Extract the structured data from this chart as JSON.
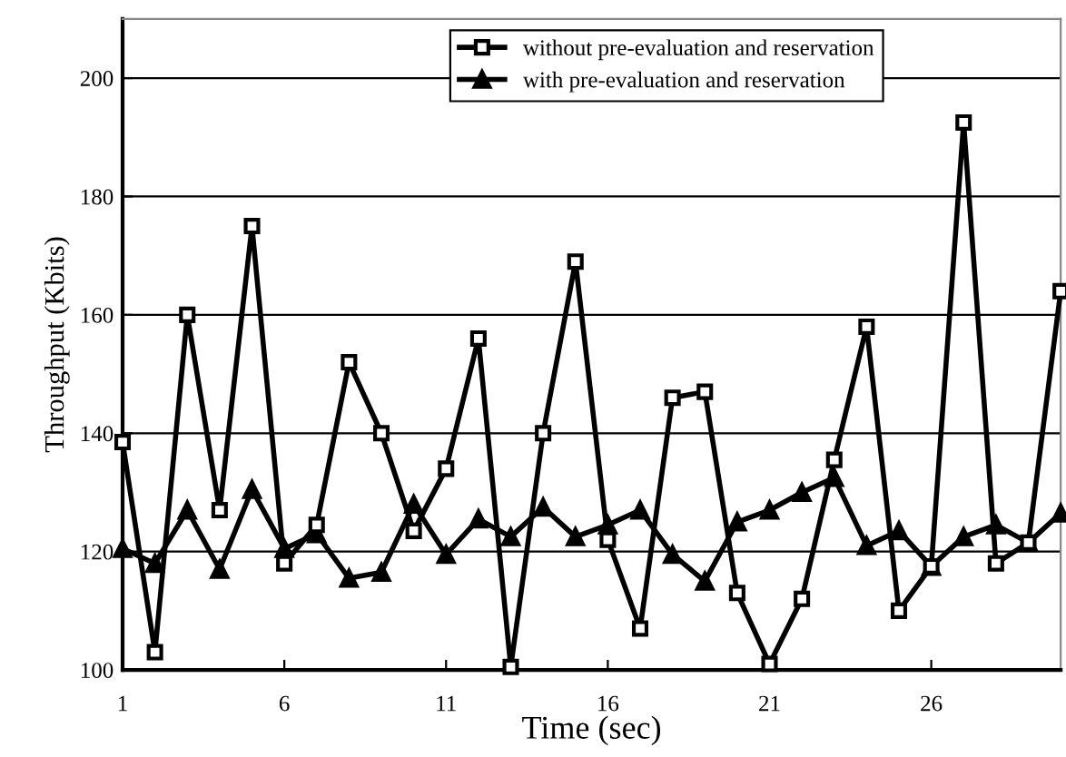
{
  "chart_data": {
    "type": "line",
    "xlabel": "Time (sec)",
    "ylabel": "Throughput (Kbits)",
    "x": [
      1,
      2,
      3,
      4,
      5,
      6,
      7,
      8,
      9,
      10,
      11,
      12,
      13,
      14,
      15,
      16,
      17,
      18,
      19,
      20,
      21,
      22,
      23,
      24,
      25,
      26,
      27,
      28,
      29,
      30
    ],
    "series": [
      {
        "name": "without pre-evaluation and reservation",
        "color": "#000000",
        "marker": "square",
        "values": [
          138.5,
          103,
          160,
          127,
          175,
          118,
          124.5,
          152,
          140,
          123.5,
          134,
          156,
          100.5,
          140,
          169,
          122,
          107,
          146,
          147,
          113,
          101,
          112,
          135.5,
          158,
          110,
          117.5,
          192.5,
          118,
          121.5,
          164
        ]
      },
      {
        "name": "with pre-evaluation and reservation",
        "color": "#000000",
        "marker": "triangle",
        "values": [
          120.5,
          118,
          127,
          117,
          130.5,
          120.5,
          123,
          115.5,
          116.5,
          128,
          119.5,
          125.5,
          122.5,
          127.5,
          122.5,
          124.5,
          127,
          119.5,
          115,
          125,
          127,
          130,
          132.5,
          121,
          123.5,
          117.5,
          122.5,
          124.5,
          121.5,
          126.5
        ]
      }
    ],
    "xlim": [
      1,
      30
    ],
    "xticks": [
      1,
      6,
      11,
      16,
      21,
      26
    ],
    "ylim": [
      100,
      210
    ],
    "yticks": [
      100,
      120,
      140,
      160,
      180,
      200
    ],
    "grid": "y",
    "legend": "top",
    "line_style": "solid"
  }
}
